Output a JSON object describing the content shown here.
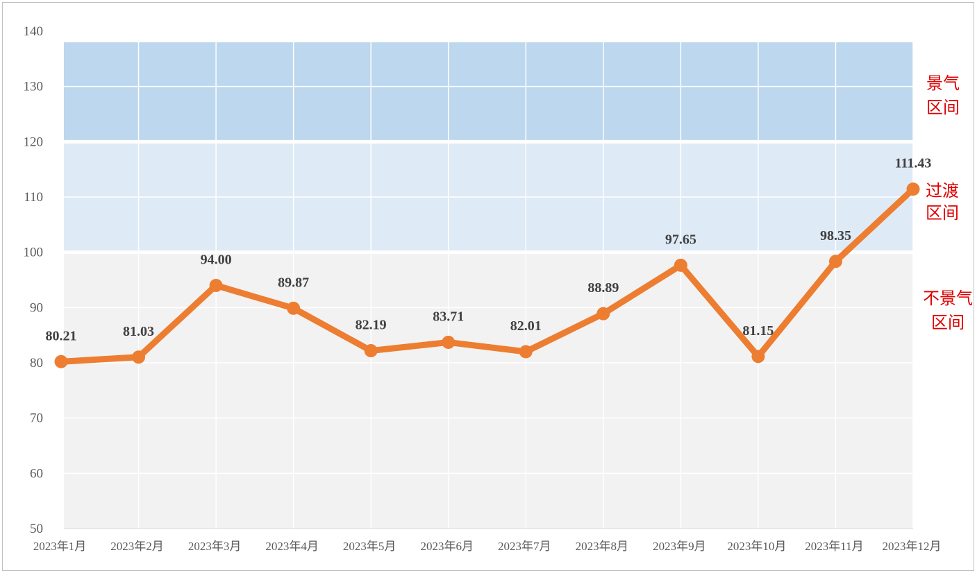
{
  "chart_data": {
    "type": "line",
    "title": "",
    "xlabel": "",
    "ylabel": "",
    "ylim": [
      50,
      140
    ],
    "yticks": [
      50,
      60,
      70,
      80,
      90,
      100,
      110,
      120,
      130,
      140
    ],
    "grid": true,
    "legend": "none",
    "categories": [
      "2023年1月",
      "2023年2月",
      "2023年3月",
      "2023年4月",
      "2023年5月",
      "2023年6月",
      "2023年7月",
      "2023年8月",
      "2023年9月",
      "2023年10月",
      "2023年11月",
      "2023年12月"
    ],
    "series": [
      {
        "values": [
          80.21,
          81.03,
          94.0,
          89.87,
          82.19,
          83.71,
          82.01,
          88.89,
          97.65,
          81.15,
          98.35,
          111.43
        ],
        "labels": [
          "80.21",
          "81.03",
          "94.00",
          "89.87",
          "82.19",
          "83.71",
          "82.01",
          "88.89",
          "97.65",
          "81.15",
          "98.35",
          "111.43"
        ],
        "color": "#ed7d31"
      }
    ],
    "bands": [
      {
        "label_lines": [
          "不景气",
          "区间"
        ],
        "range": [
          50,
          100
        ],
        "color": "#f2f2f2"
      },
      {
        "label_lines": [
          "过渡",
          "区间"
        ],
        "range": [
          100,
          120
        ],
        "color": "#deeaf6"
      },
      {
        "label_lines": [
          "景气",
          "区间"
        ],
        "range": [
          120,
          138
        ],
        "color": "#bdd7ee"
      }
    ],
    "colors": {
      "zone_label": "#e00000",
      "grid": "#ffffff",
      "axis_text": "#595959",
      "data_label": "#404040"
    }
  }
}
